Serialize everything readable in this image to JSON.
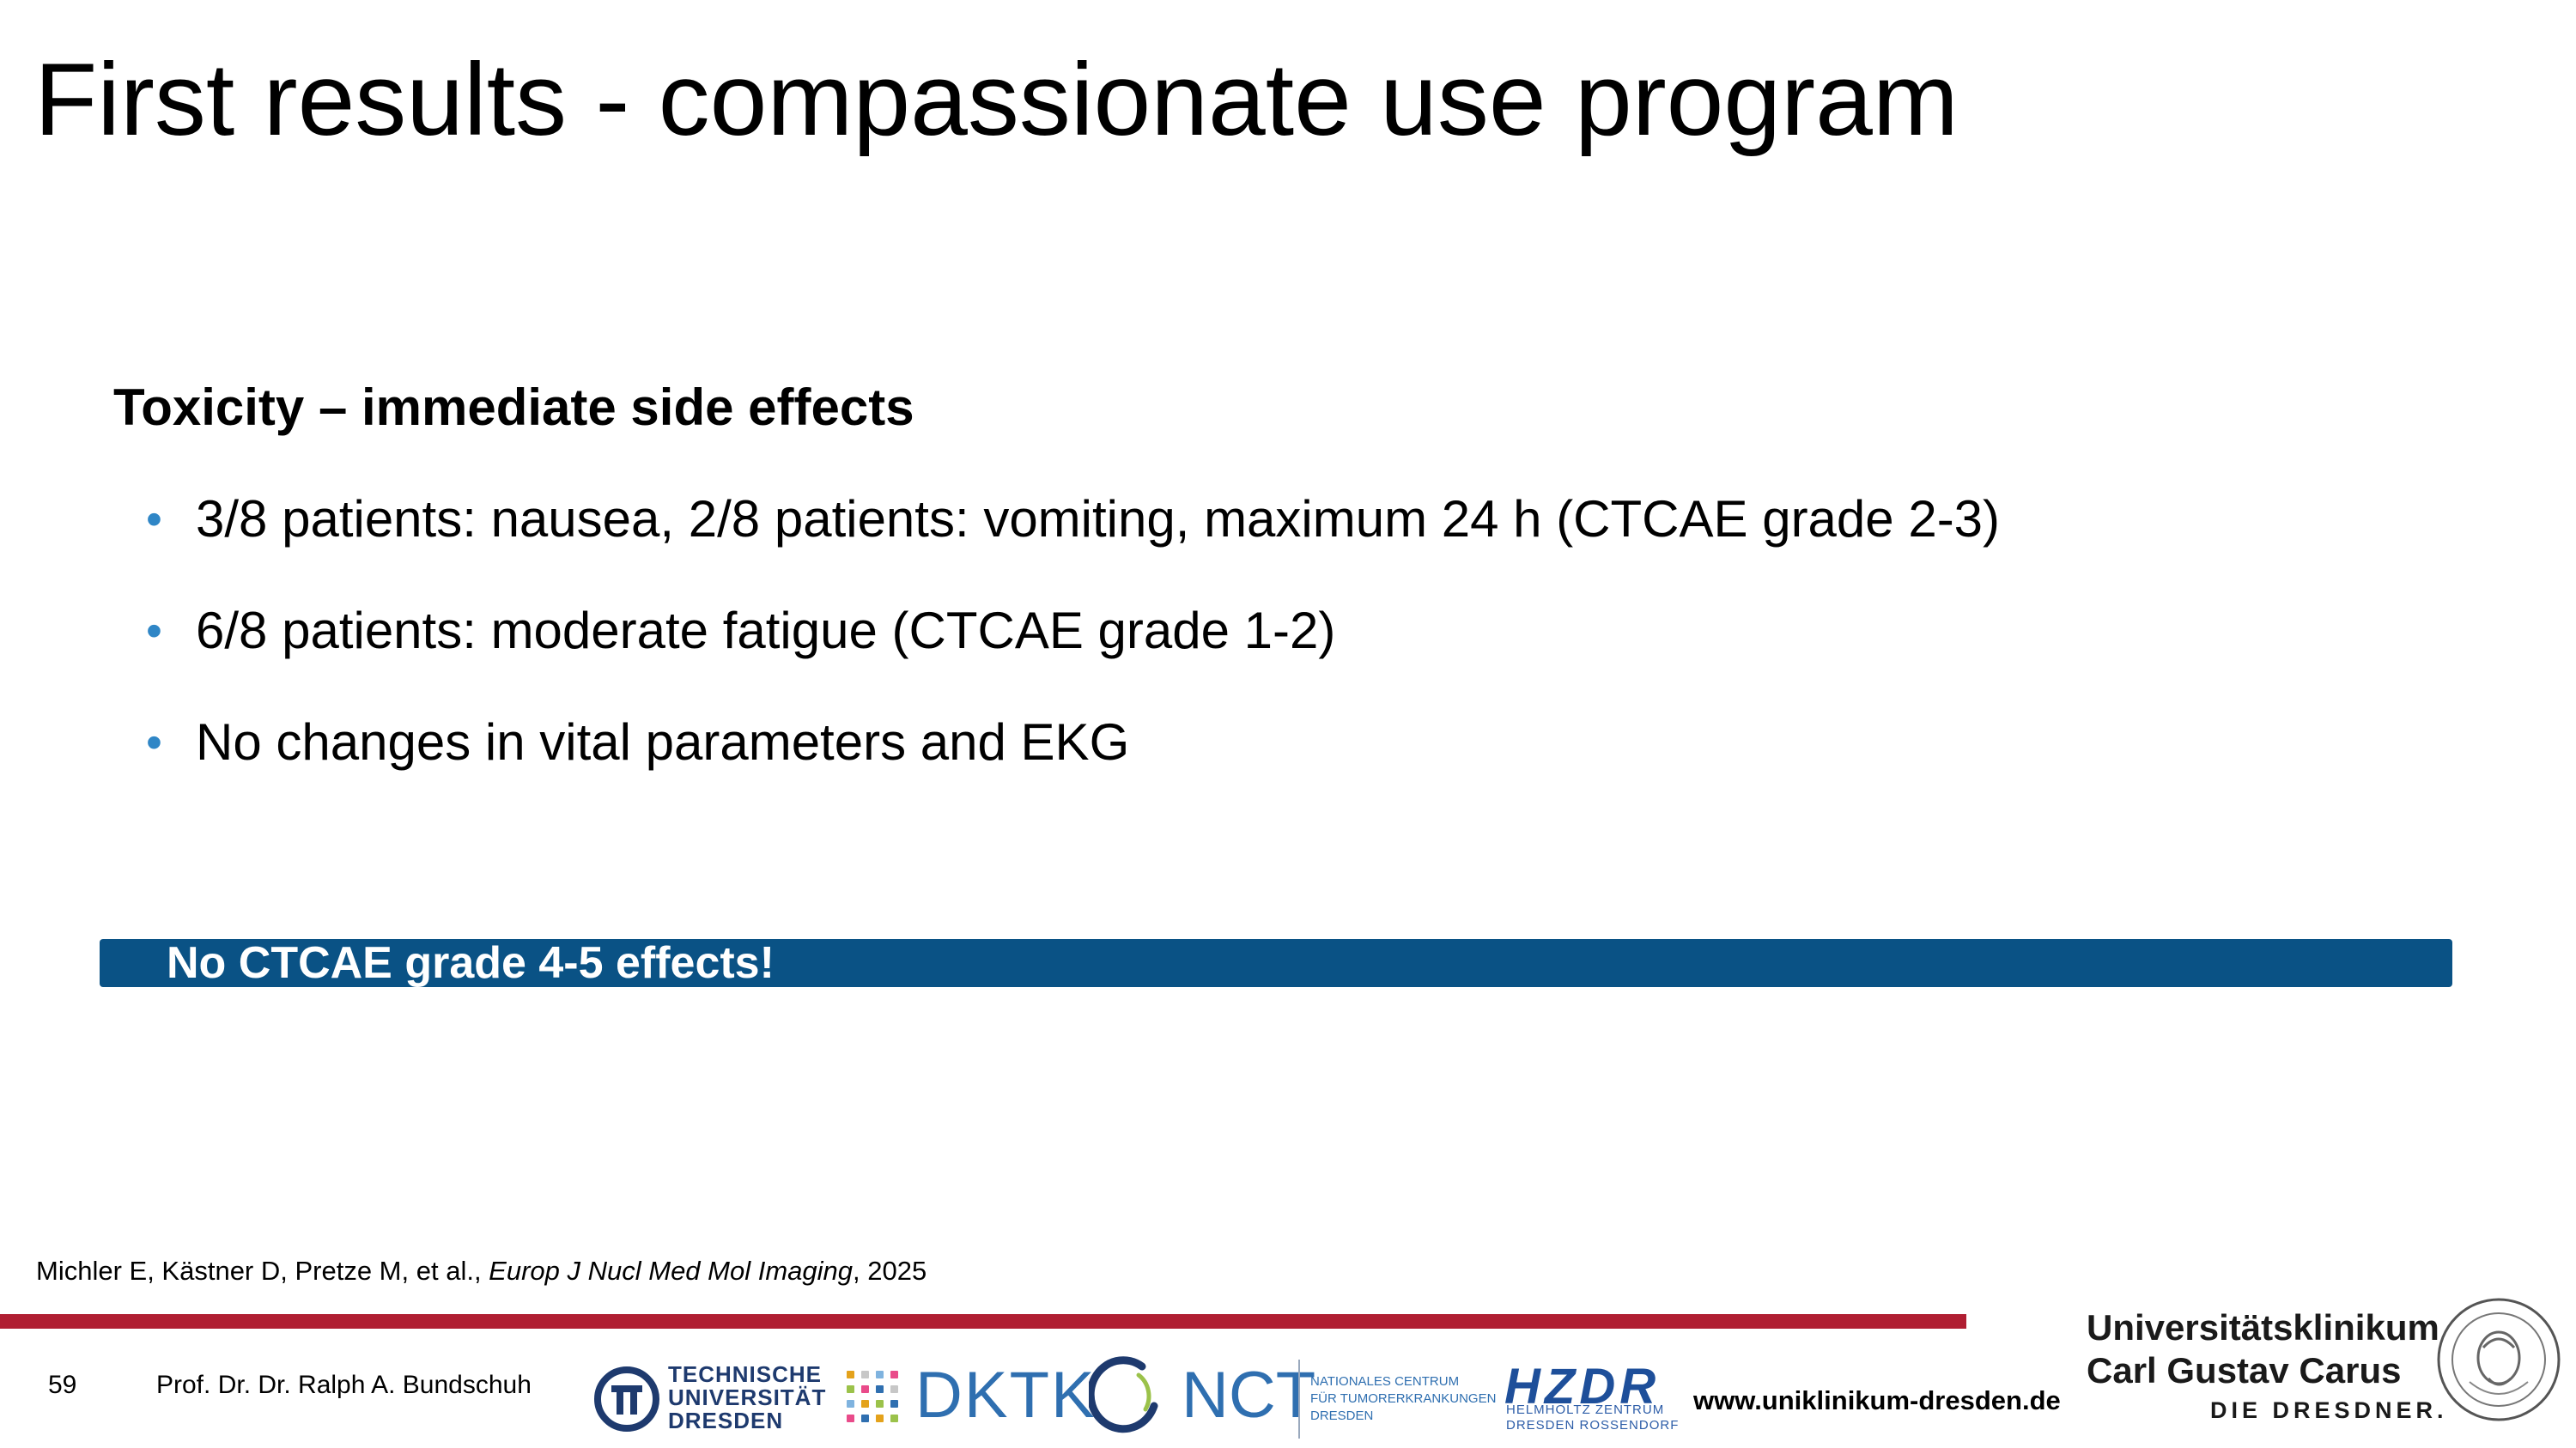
{
  "slide": {
    "title": "First results - compassionate use program",
    "subheading": "Toxicity – immediate side effects",
    "bullets": [
      "3/8 patients: nausea, 2/8 patients: vomiting, maximum 24 h (CTCAE grade 2-3)",
      "6/8 patients: moderate fatigue (CTCAE grade 1-2)",
      "No changes in vital parameters and EKG"
    ],
    "bullet_glyph": "•",
    "banner": "No CTCAE grade 4-5 effects!",
    "citation": {
      "authors": "Michler E, Kästner D, Pretze M, et al., ",
      "journal": "Europ J Nucl Med Mol Imaging",
      "year": ", 2025"
    }
  },
  "footer": {
    "page_number": "59",
    "author": "Prof. Dr. Dr. Ralph A. Bundschuh",
    "url": "www.uniklinikum-dresden.de",
    "logos": {
      "tud": [
        "TECHNISCHE",
        "UNIVERSITÄT",
        "DRESDEN"
      ],
      "dktk": "DKTK",
      "nct": "NCT",
      "nct_sub": [
        "NATIONALES CENTRUM",
        "FÜR TUMORERKRANKUNGEN",
        "DRESDEN"
      ],
      "hzdr": "HZDR",
      "hzdr_sub": [
        "HELMHOLTZ ZENTRUM",
        "DRESDEN ROSSENDORF"
      ],
      "uniklinikum": [
        "Universitätsklinikum",
        "Carl Gustav Carus",
        "DIE DRESDNER."
      ]
    }
  },
  "colors": {
    "bullet": "#2f86c6",
    "banner_bg": "#0a5285",
    "red_rule": "#b01e32",
    "logo_blue": "#2f6fb0"
  }
}
